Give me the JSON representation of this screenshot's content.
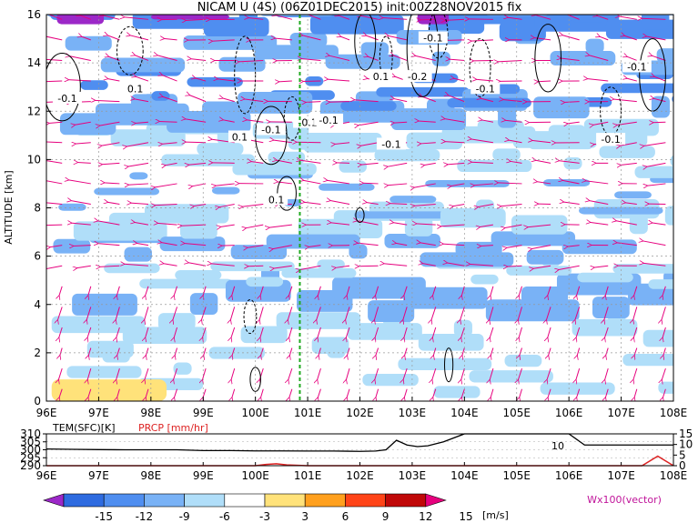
{
  "chart_data": [
    {
      "type": "heatmap",
      "title": "NICAM U (4S) (06Z01DEC2015) init:00Z28NOV2015 fix",
      "ylabel": "ALTITUDE [km]",
      "x_ticks": [
        "96E",
        "97E",
        "98E",
        "99E",
        "100E",
        "101E",
        "102E",
        "103E",
        "104E",
        "105E",
        "106E",
        "107E",
        "108E"
      ],
      "y_ticks": [
        "0",
        "2",
        "4",
        "6",
        "8",
        "10",
        "12",
        "14",
        "16"
      ],
      "xlim": [
        96,
        108
      ],
      "ylim": [
        0,
        16
      ],
      "marker_line_lon": 100.85,
      "contour_labels": [
        {
          "text": "-0.1",
          "lon": 96.4,
          "alt": 12.5
        },
        {
          "text": "0.1",
          "lon": 97.7,
          "alt": 12.9
        },
        {
          "text": "0.1",
          "lon": 99.7,
          "alt": 10.9
        },
        {
          "text": "-0.1",
          "lon": 100.3,
          "alt": 11.2
        },
        {
          "text": "-0.1",
          "lon": 101.0,
          "alt": 11.5
        },
        {
          "text": "-0.1",
          "lon": 101.4,
          "alt": 11.6
        },
        {
          "text": "0.1",
          "lon": 100.4,
          "alt": 8.3
        },
        {
          "text": "0.1",
          "lon": 102.4,
          "alt": 13.4
        },
        {
          "text": "-0.1",
          "lon": 102.6,
          "alt": 10.6
        },
        {
          "text": "-0.2",
          "lon": 103.1,
          "alt": 13.4
        },
        {
          "text": "-0.1",
          "lon": 103.4,
          "alt": 15.0
        },
        {
          "text": "-0.1",
          "lon": 104.4,
          "alt": 12.9
        },
        {
          "text": "-0.1",
          "lon": 106.8,
          "alt": 10.8
        },
        {
          "text": "-0.1",
          "lon": 107.3,
          "alt": 13.8
        }
      ],
      "colorbar": {
        "levels": [
          "-15",
          "-12",
          "-9",
          "-6",
          "-3",
          "3",
          "6",
          "9",
          "12",
          "15"
        ],
        "unit": "[m/s]",
        "colors": [
          "#9c28c8",
          "#2e6be0",
          "#4f8ef0",
          "#79b2f6",
          "#b0def9",
          "#ffffff",
          "#ffe27a",
          "#ffa01e",
          "#ff4418",
          "#c00808",
          "#e6007e"
        ]
      },
      "vector_label": "Wx100(vector)",
      "vector_color": "#e6007e"
    },
    {
      "type": "line",
      "x_ticks": [
        "96E",
        "97E",
        "98E",
        "99E",
        "100E",
        "101E",
        "102E",
        "103E",
        "104E",
        "105E",
        "106E",
        "107E",
        "108E"
      ],
      "xlim": [
        96,
        108
      ],
      "left_axis": {
        "label": "TEM(SFC)[K]",
        "ticks": [
          "290",
          "295",
          "300",
          "305",
          "310"
        ],
        "ylim": [
          290,
          310
        ]
      },
      "right_axis": {
        "label": "PRCP [mm/hr]",
        "ticks": [
          "0",
          "5",
          "10",
          "15"
        ],
        "ylim": [
          0,
          15
        ]
      },
      "series": [
        {
          "axis": "left",
          "x": [
            96,
            96.5,
            97,
            97.5,
            98,
            98.5,
            99,
            99.5,
            100,
            100.5,
            101,
            101.5,
            102,
            102.3,
            102.5,
            102.7,
            102.9,
            103.1,
            103.3,
            103.6,
            104,
            104.5,
            105,
            105.5,
            106,
            106.3,
            107,
            107.5,
            108
          ],
          "values": [
            300.5,
            300.3,
            300.1,
            300,
            300,
            300,
            299.5,
            299.5,
            299.3,
            299.3,
            299.2,
            299.2,
            299,
            299.2,
            300,
            306,
            303,
            302,
            302.5,
            305,
            310,
            310,
            310,
            310,
            310,
            303,
            303,
            303,
            303
          ]
        },
        {
          "axis": "right",
          "x": [
            96,
            99.5,
            100,
            100.2,
            100.4,
            100.6,
            101,
            106,
            107,
            107.4,
            107.7,
            107.9,
            108
          ],
          "values": [
            0,
            0,
            0,
            0.6,
            0.9,
            0.4,
            0,
            0,
            0,
            0,
            4.5,
            1.5,
            0
          ]
        }
      ],
      "annotation": "10"
    }
  ]
}
